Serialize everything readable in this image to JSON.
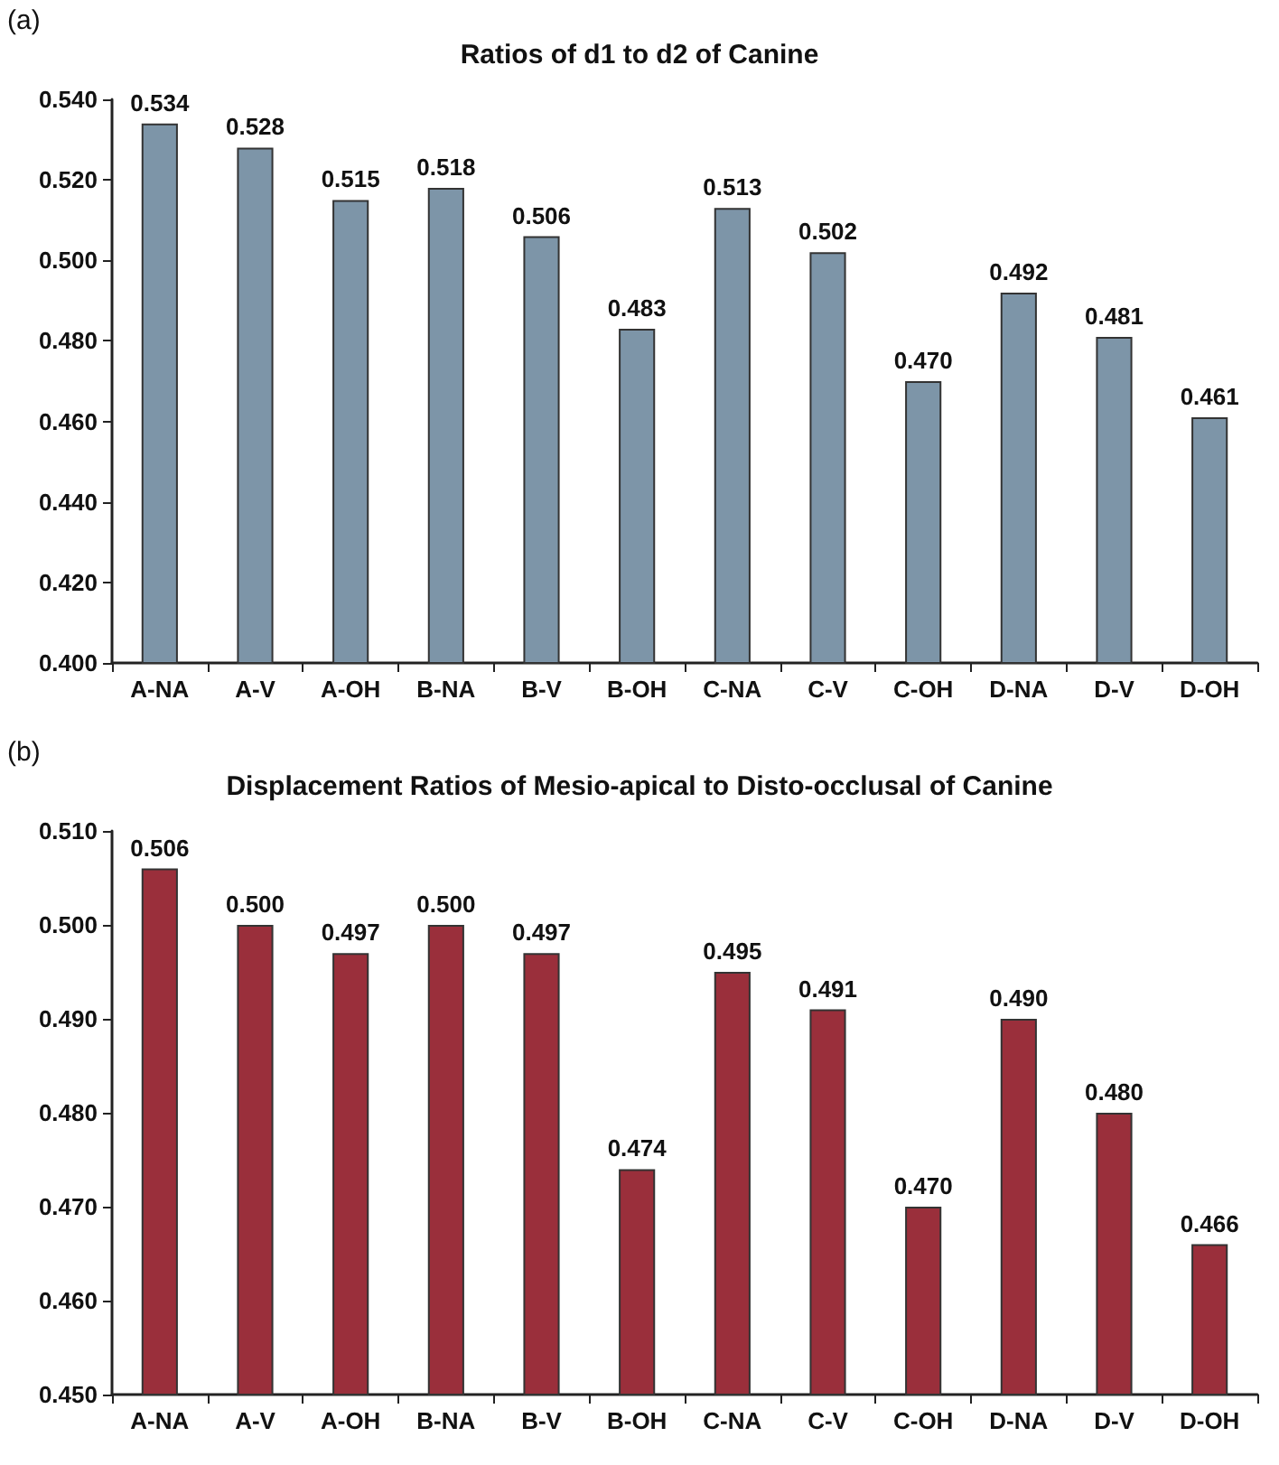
{
  "chart_data": [
    {
      "type": "bar",
      "title": "Ratios of d1 to d2 of Canine",
      "annotations": [
        "(a)"
      ],
      "categories": [
        "A-NA",
        "A-V",
        "A-OH",
        "B-NA",
        "B-V",
        "B-OH",
        "C-NA",
        "C-V",
        "C-OH",
        "D-NA",
        "D-V",
        "D-OH"
      ],
      "values": [
        0.534,
        0.528,
        0.515,
        0.518,
        0.506,
        0.483,
        0.513,
        0.502,
        0.47,
        0.492,
        0.481,
        0.461
      ],
      "value_labels": [
        "0.534",
        "0.528",
        "0.515",
        "0.518",
        "0.506",
        "0.483",
        "0.513",
        "0.502",
        "0.470",
        "0.492",
        "0.481",
        "0.461"
      ],
      "color": "#7d95a8",
      "ylim": [
        0.4,
        0.54
      ],
      "yticks": [
        {
          "value": 0.4,
          "label": "0.400"
        },
        {
          "value": 0.42,
          "label": "0.420"
        },
        {
          "value": 0.44,
          "label": "0.440"
        },
        {
          "value": 0.46,
          "label": "0.460"
        },
        {
          "value": 0.48,
          "label": "0.480"
        },
        {
          "value": 0.5,
          "label": "0.500"
        },
        {
          "value": 0.52,
          "label": "0.520"
        },
        {
          "value": 0.54,
          "label": "0.540"
        }
      ],
      "grid": false
    },
    {
      "type": "bar",
      "title": "Displacement Ratios of Mesio-apical to Disto-occlusal of Canine",
      "annotations": [
        "(b)"
      ],
      "categories": [
        "A-NA",
        "A-V",
        "A-OH",
        "B-NA",
        "B-V",
        "B-OH",
        "C-NA",
        "C-V",
        "C-OH",
        "D-NA",
        "D-V",
        "D-OH"
      ],
      "values": [
        0.506,
        0.5,
        0.497,
        0.5,
        0.497,
        0.474,
        0.495,
        0.491,
        0.47,
        0.49,
        0.48,
        0.466
      ],
      "value_labels": [
        "0.506",
        "0.500",
        "0.497",
        "0.500",
        "0.497",
        "0.474",
        "0.495",
        "0.491",
        "0.470",
        "0.490",
        "0.480",
        "0.466"
      ],
      "color": "#9a2f3b",
      "ylim": [
        0.45,
        0.51
      ],
      "yticks": [
        {
          "value": 0.45,
          "label": "0.450"
        },
        {
          "value": 0.46,
          "label": "0.460"
        },
        {
          "value": 0.47,
          "label": "0.470"
        },
        {
          "value": 0.48,
          "label": "0.480"
        },
        {
          "value": 0.49,
          "label": "0.490"
        },
        {
          "value": 0.5,
          "label": "0.500"
        },
        {
          "value": 0.51,
          "label": "0.510"
        }
      ],
      "grid": false
    }
  ]
}
